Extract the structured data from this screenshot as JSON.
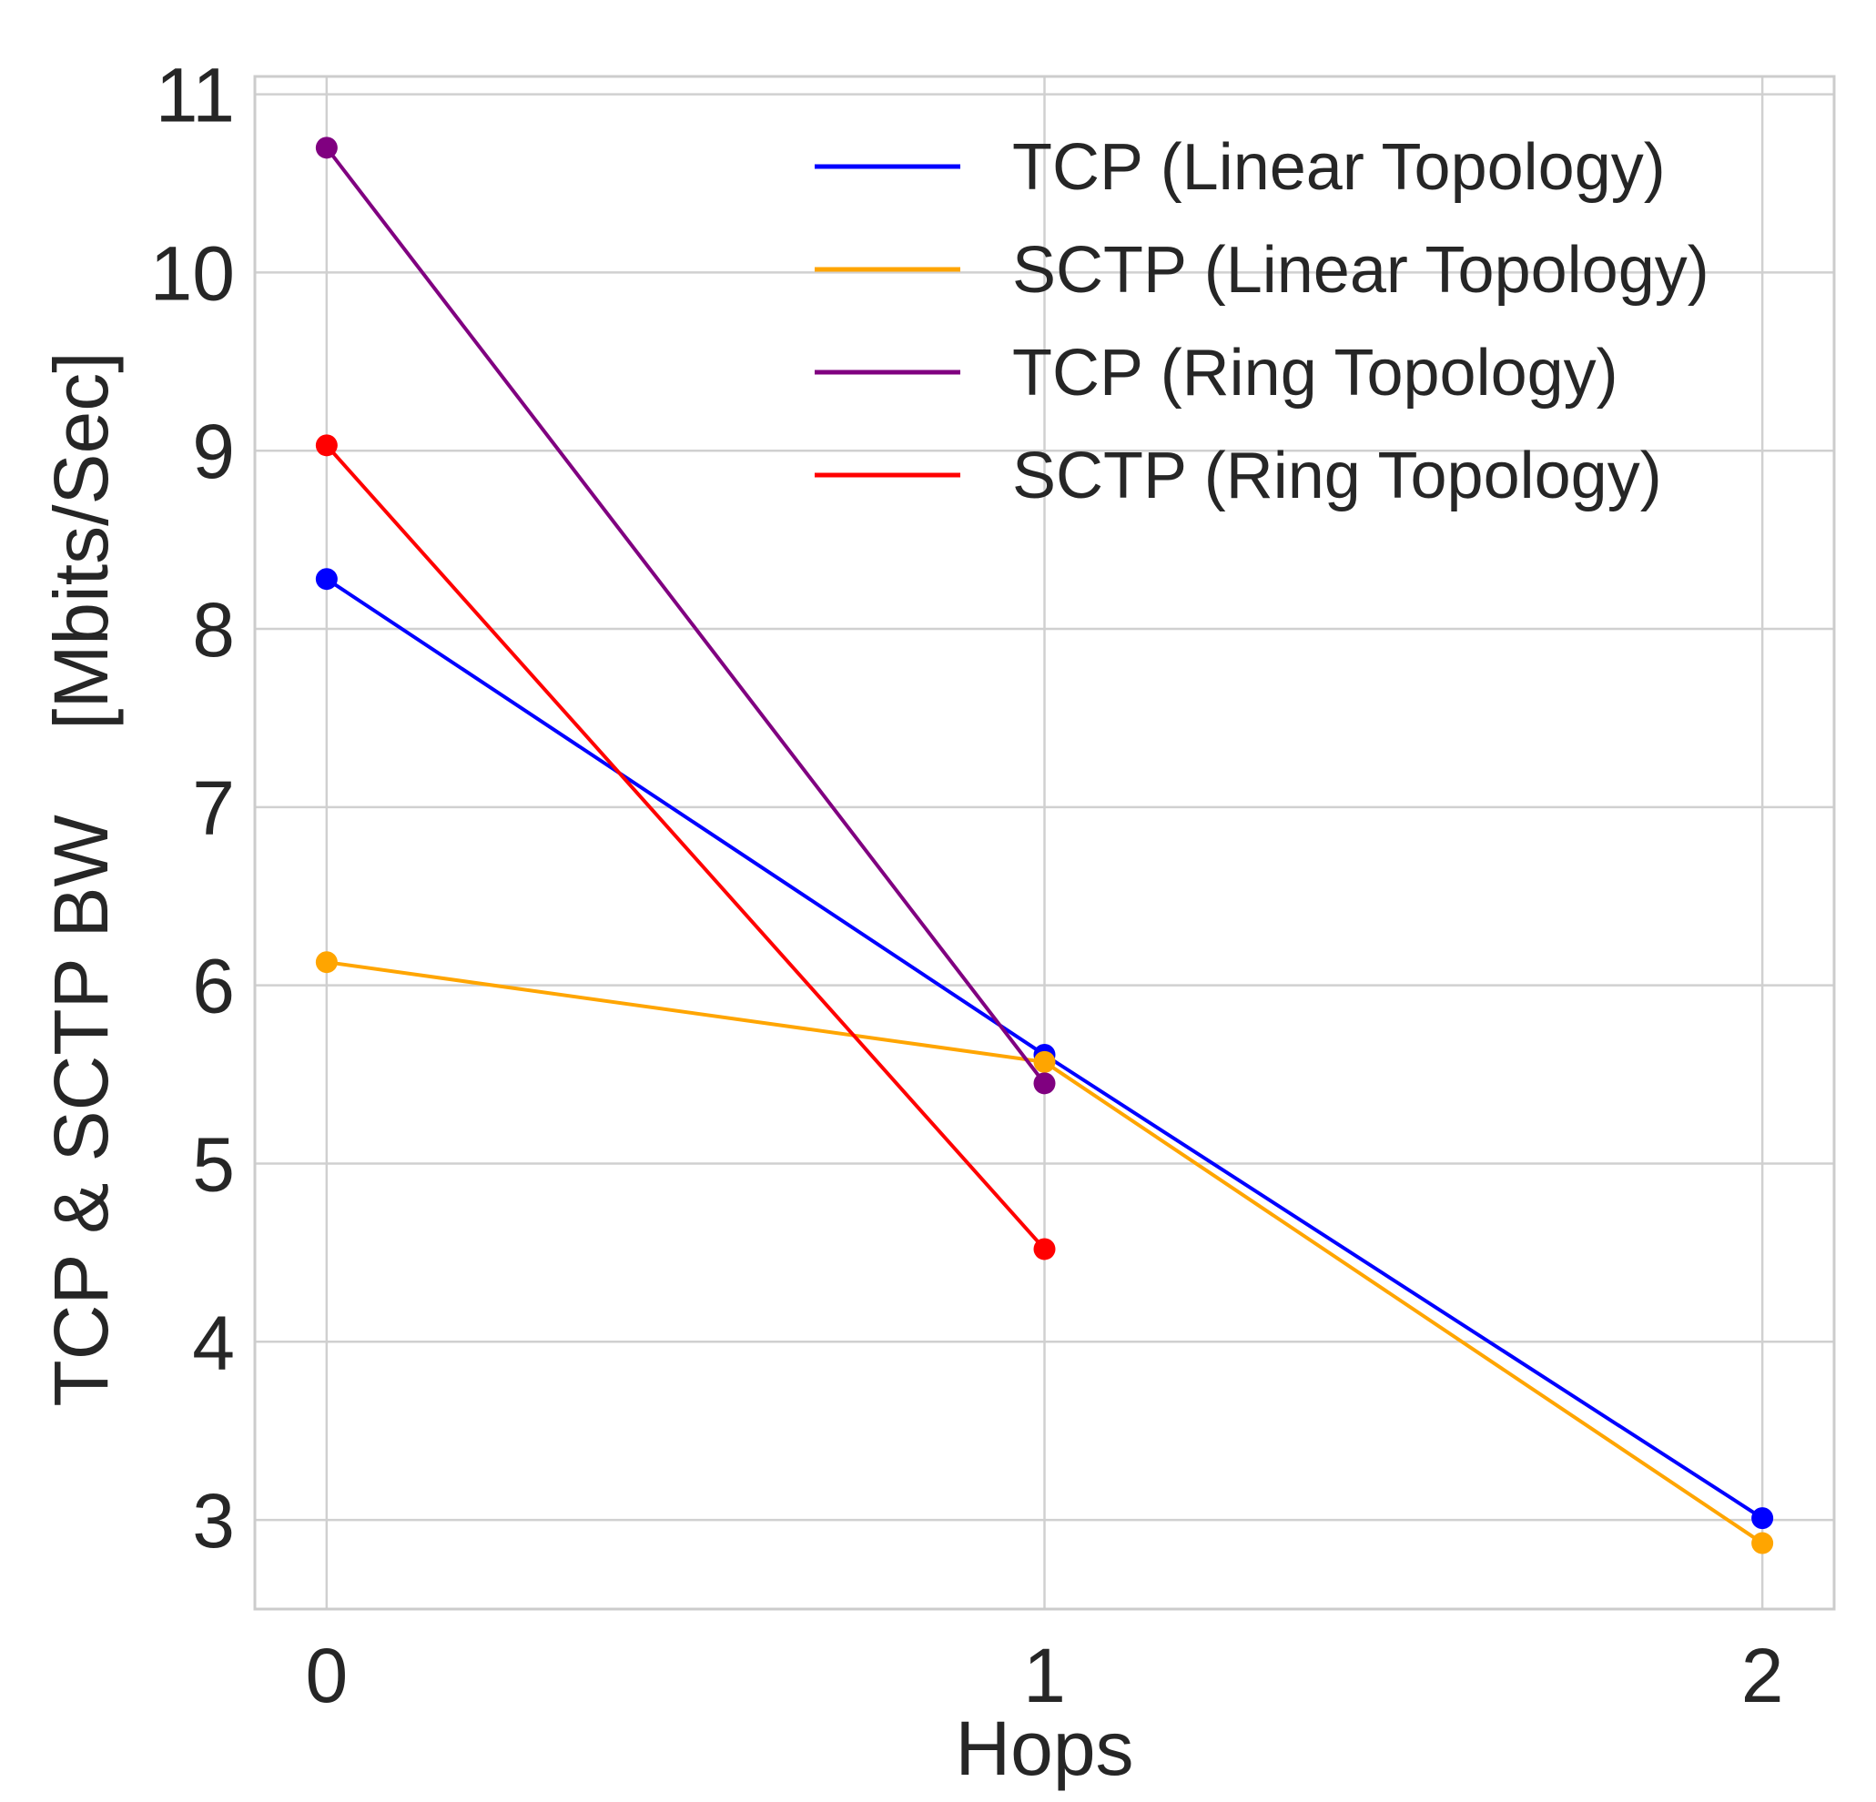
{
  "chart_data": {
    "type": "line",
    "title": "",
    "xlabel": "Hops",
    "ylabel": "TCP & SCTP BW    [Mbits/Sec]",
    "xlim": [
      -0.1,
      2.1
    ],
    "ylim": [
      2.5,
      11.1
    ],
    "xticks": [
      "0",
      "1",
      "2"
    ],
    "yticks": [
      "3",
      "4",
      "5",
      "6",
      "7",
      "8",
      "9",
      "10",
      "11"
    ],
    "grid": true,
    "legend_position": "top-right",
    "series": [
      {
        "name": "TCP (Linear Topology)",
        "color": "#0000ff",
        "x": [
          0,
          1,
          2
        ],
        "y": [
          8.28,
          5.61,
          3.01
        ]
      },
      {
        "name": "SCTP (Linear Topology)",
        "color": "#ffa500",
        "x": [
          0,
          1,
          2
        ],
        "y": [
          6.13,
          5.57,
          2.87
        ]
      },
      {
        "name": "TCP (Ring Topology)",
        "color": "#800080",
        "x": [
          0,
          1
        ],
        "y": [
          10.7,
          5.45
        ]
      },
      {
        "name": "SCTP (Ring Topology)",
        "color": "#ff0000",
        "x": [
          0,
          1
        ],
        "y": [
          9.03,
          4.52
        ]
      }
    ]
  }
}
